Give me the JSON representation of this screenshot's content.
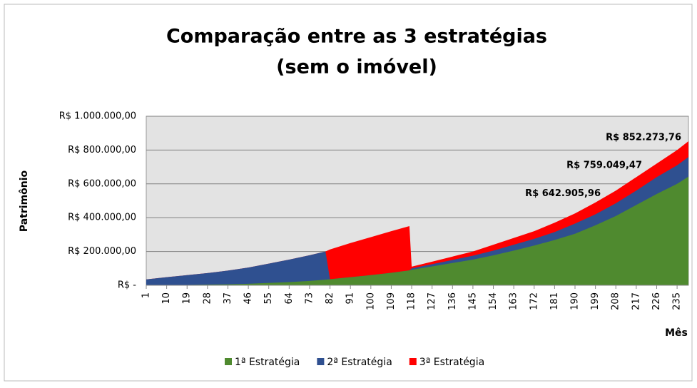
{
  "chart_data": {
    "type": "area",
    "title": "Comparação entre as 3 estratégias",
    "subtitle": "(sem o imóvel)",
    "ylabel": "Patrimônio",
    "xlabel": "Mês",
    "x": [
      1,
      10,
      19,
      28,
      37,
      46,
      55,
      64,
      73,
      80,
      82,
      91,
      100,
      109,
      117,
      118,
      127,
      136,
      145,
      154,
      163,
      172,
      181,
      190,
      199,
      208,
      217,
      226,
      235,
      240
    ],
    "xlim": [
      1,
      240
    ],
    "xticks": [
      1,
      10,
      19,
      28,
      37,
      46,
      55,
      64,
      73,
      82,
      91,
      100,
      109,
      118,
      127,
      136,
      145,
      154,
      163,
      172,
      181,
      190,
      199,
      208,
      217,
      226,
      235
    ],
    "ylim": [
      0,
      1000000
    ],
    "yticks": [
      {
        "value": 0,
        "label": "R$ -"
      },
      {
        "value": 200000,
        "label": "R$ 200.000,00"
      },
      {
        "value": 400000,
        "label": "R$ 400.000,00"
      },
      {
        "value": 600000,
        "label": "R$ 600.000,00"
      },
      {
        "value": 800000,
        "label": "R$ 800.000,00"
      },
      {
        "value": 1000000,
        "label": "R$ 1.000.000,00"
      }
    ],
    "grid": true,
    "legend": "bottom",
    "series": [
      {
        "name": "1ª Estratégia",
        "color": "#4f8a2f",
        "values": [
          0,
          1000,
          2000,
          4000,
          6000,
          9000,
          14000,
          19000,
          26000,
          33000,
          36000,
          48000,
          60000,
          74000,
          88000,
          92000,
          112000,
          132000,
          152000,
          177000,
          205000,
          235000,
          268000,
          305000,
          355000,
          410000,
          475000,
          540000,
          600000,
          642905.96
        ],
        "value_labels": [
          null,
          null,
          null,
          null,
          null,
          null,
          null,
          null,
          null,
          null,
          null,
          null,
          null,
          null,
          null,
          null,
          null,
          null,
          null,
          null,
          null,
          null,
          null,
          null,
          null,
          null,
          null,
          null,
          null,
          "R$ 642.905,96"
        ]
      },
      {
        "name": "2ª Estratégia",
        "color": "#2f5090",
        "values": [
          35000,
          48000,
          60000,
          72000,
          87000,
          105000,
          128000,
          152000,
          178000,
          200000,
          36000,
          48000,
          60000,
          74000,
          88000,
          100000,
          125000,
          150000,
          175000,
          205000,
          240000,
          275000,
          315000,
          365000,
          420000,
          485000,
          560000,
          640000,
          710000,
          759049.47
        ],
        "value_labels": [
          null,
          null,
          null,
          null,
          null,
          null,
          null,
          null,
          null,
          null,
          null,
          null,
          null,
          null,
          null,
          null,
          null,
          null,
          null,
          null,
          null,
          null,
          null,
          null,
          null,
          null,
          null,
          null,
          null,
          "R$ 759.049,47"
        ]
      },
      {
        "name": "3ª Estratégia",
        "color": "#ff0000",
        "values": [
          35000,
          48000,
          60000,
          72000,
          87000,
          105000,
          128000,
          152000,
          178000,
          200000,
          212000,
          250000,
          285000,
          320000,
          350000,
          110000,
          140000,
          170000,
          200000,
          240000,
          280000,
          320000,
          370000,
          425000,
          490000,
          560000,
          640000,
          720000,
          800000,
          852273.76
        ],
        "value_labels": [
          null,
          null,
          null,
          null,
          null,
          null,
          null,
          null,
          null,
          null,
          null,
          null,
          null,
          null,
          null,
          null,
          null,
          null,
          null,
          null,
          null,
          null,
          null,
          null,
          null,
          null,
          null,
          null,
          null,
          "R$ 852.273,76"
        ]
      }
    ]
  }
}
